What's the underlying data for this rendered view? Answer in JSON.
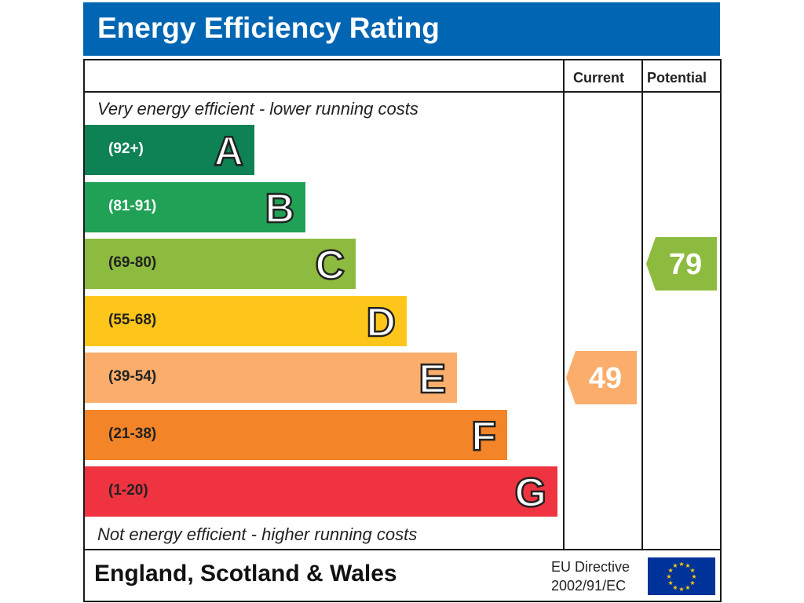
{
  "title": "Energy Efficiency Rating",
  "columns": {
    "current": "Current",
    "potential": "Potential"
  },
  "captions": {
    "top": "Very energy efficient - lower running costs",
    "bottom": "Not energy efficient - higher running costs"
  },
  "chart_data": {
    "type": "bar",
    "categories": [
      "A",
      "B",
      "C",
      "D",
      "E",
      "F",
      "G"
    ],
    "bands": [
      {
        "letter": "A",
        "range": "(92+)",
        "min": 92,
        "max": 100,
        "color": "#0f8255",
        "text_color": "#ffffff"
      },
      {
        "letter": "B",
        "range": "(81-91)",
        "min": 81,
        "max": 91,
        "color": "#21a156",
        "text_color": "#ffffff"
      },
      {
        "letter": "C",
        "range": "(69-80)",
        "min": 69,
        "max": 80,
        "color": "#8dbb3f",
        "text_color": "#222222"
      },
      {
        "letter": "D",
        "range": "(55-68)",
        "min": 55,
        "max": 68,
        "color": "#fec61a",
        "text_color": "#222222"
      },
      {
        "letter": "E",
        "range": "(39-54)",
        "min": 39,
        "max": 54,
        "color": "#fbad6b",
        "text_color": "#222222"
      },
      {
        "letter": "F",
        "range": "(21-38)",
        "min": 21,
        "max": 38,
        "color": "#f38428",
        "text_color": "#222222"
      },
      {
        "letter": "G",
        "range": "(1-20)",
        "min": 1,
        "max": 20,
        "color": "#ef3340",
        "text_color": "#222222"
      }
    ],
    "current": {
      "value": 49,
      "band": "E",
      "color": "#fbad6b"
    },
    "potential": {
      "value": 79,
      "band": "C",
      "color": "#8dbb3f"
    }
  },
  "footer": {
    "country": "England, Scotland & Wales",
    "directive_line1": "EU Directive",
    "directive_line2": "2002/91/EC"
  },
  "icons": {
    "flag": "eu-flag-icon"
  }
}
